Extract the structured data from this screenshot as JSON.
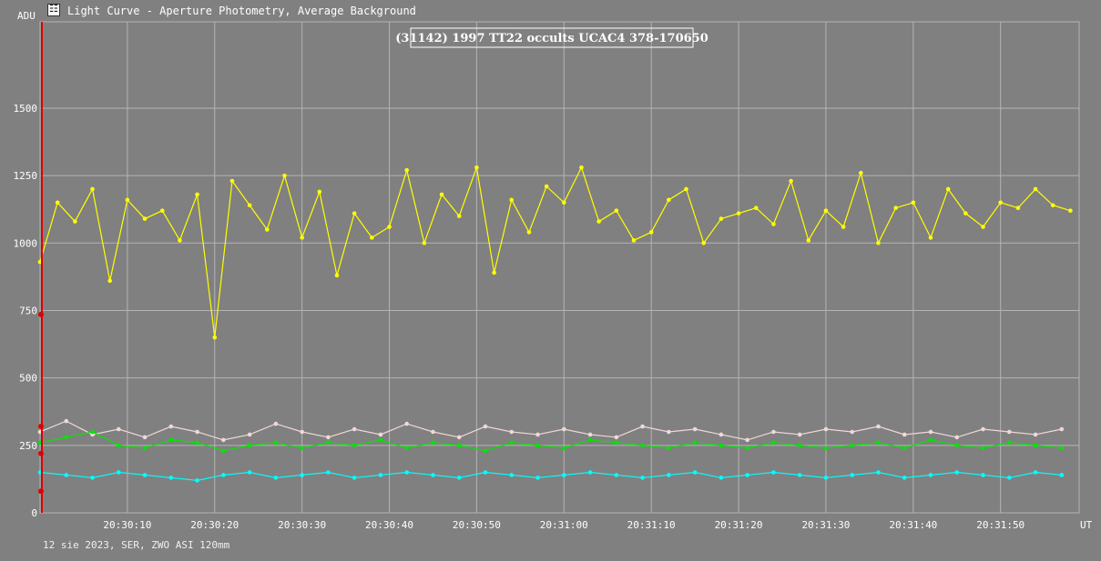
{
  "window": {
    "title": "Light Curve - Aperture Photometry, Average Background"
  },
  "footer": {
    "info": "12 sie 2023, SER, ZWO ASI 120mm"
  },
  "colors": {
    "background": "#808080",
    "grid": "#b4b4b4",
    "target": "#ffff00",
    "comp1": "#00e600",
    "comp2": "#f0d8d8",
    "comp3": "#00ffff",
    "marker": "#e00000"
  },
  "chart_data": {
    "type": "line",
    "title": "(31142) 1997 TT22 occults UCAC4 378-170650",
    "ylabel": "ADU",
    "xlabel": "UT",
    "ylim": [
      0,
      1820
    ],
    "xlim": [
      0,
      119
    ],
    "yticks": [
      {
        "value": 0,
        "label": "0"
      },
      {
        "value": 250,
        "label": "250"
      },
      {
        "value": 500,
        "label": "500"
      },
      {
        "value": 750,
        "label": "750"
      },
      {
        "value": 1000,
        "label": "1000"
      },
      {
        "value": 1250,
        "label": "1250"
      },
      {
        "value": 1500,
        "label": "1500"
      }
    ],
    "xticks": [
      {
        "value": 10,
        "label": "20:30:10"
      },
      {
        "value": 20,
        "label": "20:30:20"
      },
      {
        "value": 30,
        "label": "20:30:30"
      },
      {
        "value": 40,
        "label": "20:30:40"
      },
      {
        "value": 50,
        "label": "20:30:50"
      },
      {
        "value": 60,
        "label": "20:31:00"
      },
      {
        "value": 70,
        "label": "20:31:10"
      },
      {
        "value": 80,
        "label": "20:31:20"
      },
      {
        "value": 90,
        "label": "20:31:30"
      },
      {
        "value": 100,
        "label": "20:31:40"
      },
      {
        "value": 110,
        "label": "20:31:50"
      }
    ],
    "grid": true,
    "series": [
      {
        "color": "#ffff00",
        "x": [
          0,
          2,
          4,
          6,
          8,
          10,
          12,
          14,
          16,
          18,
          20,
          22,
          24,
          26,
          28,
          30,
          32,
          34,
          36,
          38,
          40,
          42,
          44,
          46,
          48,
          50,
          52,
          54,
          56,
          58,
          60,
          62,
          64,
          66,
          68,
          70,
          72,
          74,
          76,
          78,
          80,
          82,
          84,
          86,
          88,
          90,
          92,
          94,
          96,
          98,
          100,
          102,
          104,
          106,
          108,
          110,
          112,
          114,
          116,
          118
        ],
        "values": [
          930,
          1150,
          1080,
          1200,
          860,
          1160,
          1090,
          1120,
          1010,
          1180,
          650,
          1230,
          1140,
          1050,
          1250,
          1020,
          1190,
          880,
          1110,
          1020,
          1060,
          1270,
          1000,
          1180,
          1100,
          1280,
          890,
          1160,
          1040,
          1210,
          1150,
          1280,
          1080,
          1120,
          1010,
          1040,
          1160,
          1200,
          1000,
          1090,
          1110,
          1130,
          1070,
          1230,
          1010,
          1120,
          1060,
          1260,
          1000,
          1130,
          1150,
          1020,
          1200,
          1110,
          1060,
          1150,
          1130,
          1200,
          1140,
          1120
        ]
      },
      {
        "color": "#f0d8d8",
        "x": [
          0,
          3,
          6,
          9,
          12,
          15,
          18,
          21,
          24,
          27,
          30,
          33,
          36,
          39,
          42,
          45,
          48,
          51,
          54,
          57,
          60,
          63,
          66,
          69,
          72,
          75,
          78,
          81,
          84,
          87,
          90,
          93,
          96,
          99,
          102,
          105,
          108,
          111,
          114,
          117
        ],
        "values": [
          300,
          340,
          290,
          310,
          280,
          320,
          300,
          270,
          290,
          330,
          300,
          280,
          310,
          290,
          330,
          300,
          280,
          320,
          300,
          290,
          310,
          290,
          280,
          320,
          300,
          310,
          290,
          270,
          300,
          290,
          310,
          300,
          320,
          290,
          300,
          280,
          310,
          300,
          290,
          310
        ]
      },
      {
        "color": "#00e600",
        "x": [
          0,
          3,
          6,
          9,
          12,
          15,
          18,
          21,
          24,
          27,
          30,
          33,
          36,
          39,
          42,
          45,
          48,
          51,
          54,
          57,
          60,
          63,
          66,
          69,
          72,
          75,
          78,
          81,
          84,
          87,
          90,
          93,
          96,
          99,
          102,
          105,
          108,
          111,
          114,
          117
        ],
        "values": [
          260,
          280,
          300,
          250,
          240,
          270,
          260,
          230,
          250,
          260,
          240,
          260,
          250,
          270,
          240,
          260,
          250,
          230,
          260,
          250,
          240,
          270,
          260,
          250,
          240,
          260,
          250,
          240,
          260,
          250,
          240,
          250,
          260,
          240,
          270,
          250,
          240,
          260,
          250,
          240
        ]
      },
      {
        "color": "#00ffff",
        "x": [
          0,
          3,
          6,
          9,
          12,
          15,
          18,
          21,
          24,
          27,
          30,
          33,
          36,
          39,
          42,
          45,
          48,
          51,
          54,
          57,
          60,
          63,
          66,
          69,
          72,
          75,
          78,
          81,
          84,
          87,
          90,
          93,
          96,
          99,
          102,
          105,
          108,
          111,
          114,
          117
        ],
        "values": [
          150,
          140,
          130,
          150,
          140,
          130,
          120,
          140,
          150,
          130,
          140,
          150,
          130,
          140,
          150,
          140,
          130,
          150,
          140,
          130,
          140,
          150,
          140,
          130,
          140,
          150,
          130,
          140,
          150,
          140,
          130,
          140,
          150,
          130,
          140,
          150,
          140,
          130,
          150,
          140
        ]
      }
    ],
    "markers": [
      {
        "y": 735,
        "color": "#e00000"
      },
      {
        "y": 320,
        "color": "#e00000"
      },
      {
        "y": 220,
        "color": "#e00000"
      },
      {
        "y": 80,
        "color": "#e00000"
      }
    ]
  }
}
